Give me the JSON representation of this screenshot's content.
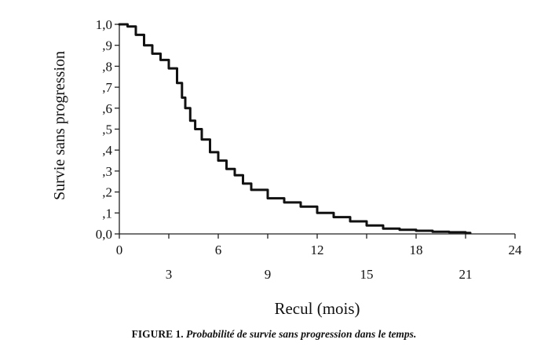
{
  "chart_data": {
    "type": "line",
    "subtype": "step",
    "title": "",
    "xlabel": "Recul (mois)",
    "ylabel": "Survie sans progression",
    "xlim": [
      0,
      24
    ],
    "ylim": [
      0,
      1.0
    ],
    "x_ticks_upper": [
      "0",
      "6",
      "12",
      "18",
      "24"
    ],
    "x_ticks_lower": [
      "3",
      "9",
      "15",
      "21"
    ],
    "y_ticks": [
      "0,0",
      ",1",
      ",2",
      ",3",
      ",4",
      ",5",
      ",6",
      ",7",
      ",8",
      ",9",
      "1,0"
    ],
    "grid": false,
    "legend": "none",
    "line_color": "#111111",
    "series": [
      {
        "x": [
          0,
          0.5,
          1.0,
          1.5,
          2.0,
          2.5,
          3.0,
          3.5,
          3.8,
          4.0,
          4.3,
          4.6,
          5.0,
          5.5,
          6.0,
          6.5,
          7.0,
          7.5,
          8.0,
          9.0,
          10.0,
          11.0,
          12.0,
          13.0,
          14.0,
          15.0,
          16.0,
          17.0,
          18.0,
          19.0,
          20.0,
          21.0
        ],
        "y": [
          1.0,
          0.99,
          0.95,
          0.9,
          0.86,
          0.83,
          0.79,
          0.72,
          0.65,
          0.6,
          0.54,
          0.5,
          0.45,
          0.39,
          0.35,
          0.31,
          0.28,
          0.24,
          0.21,
          0.17,
          0.15,
          0.13,
          0.1,
          0.08,
          0.06,
          0.04,
          0.025,
          0.02,
          0.015,
          0.01,
          0.008,
          0.005
        ]
      }
    ]
  },
  "caption": {
    "label": "FIGURE 1.",
    "text": "Probabilité de survie sans progression dans le temps."
  }
}
